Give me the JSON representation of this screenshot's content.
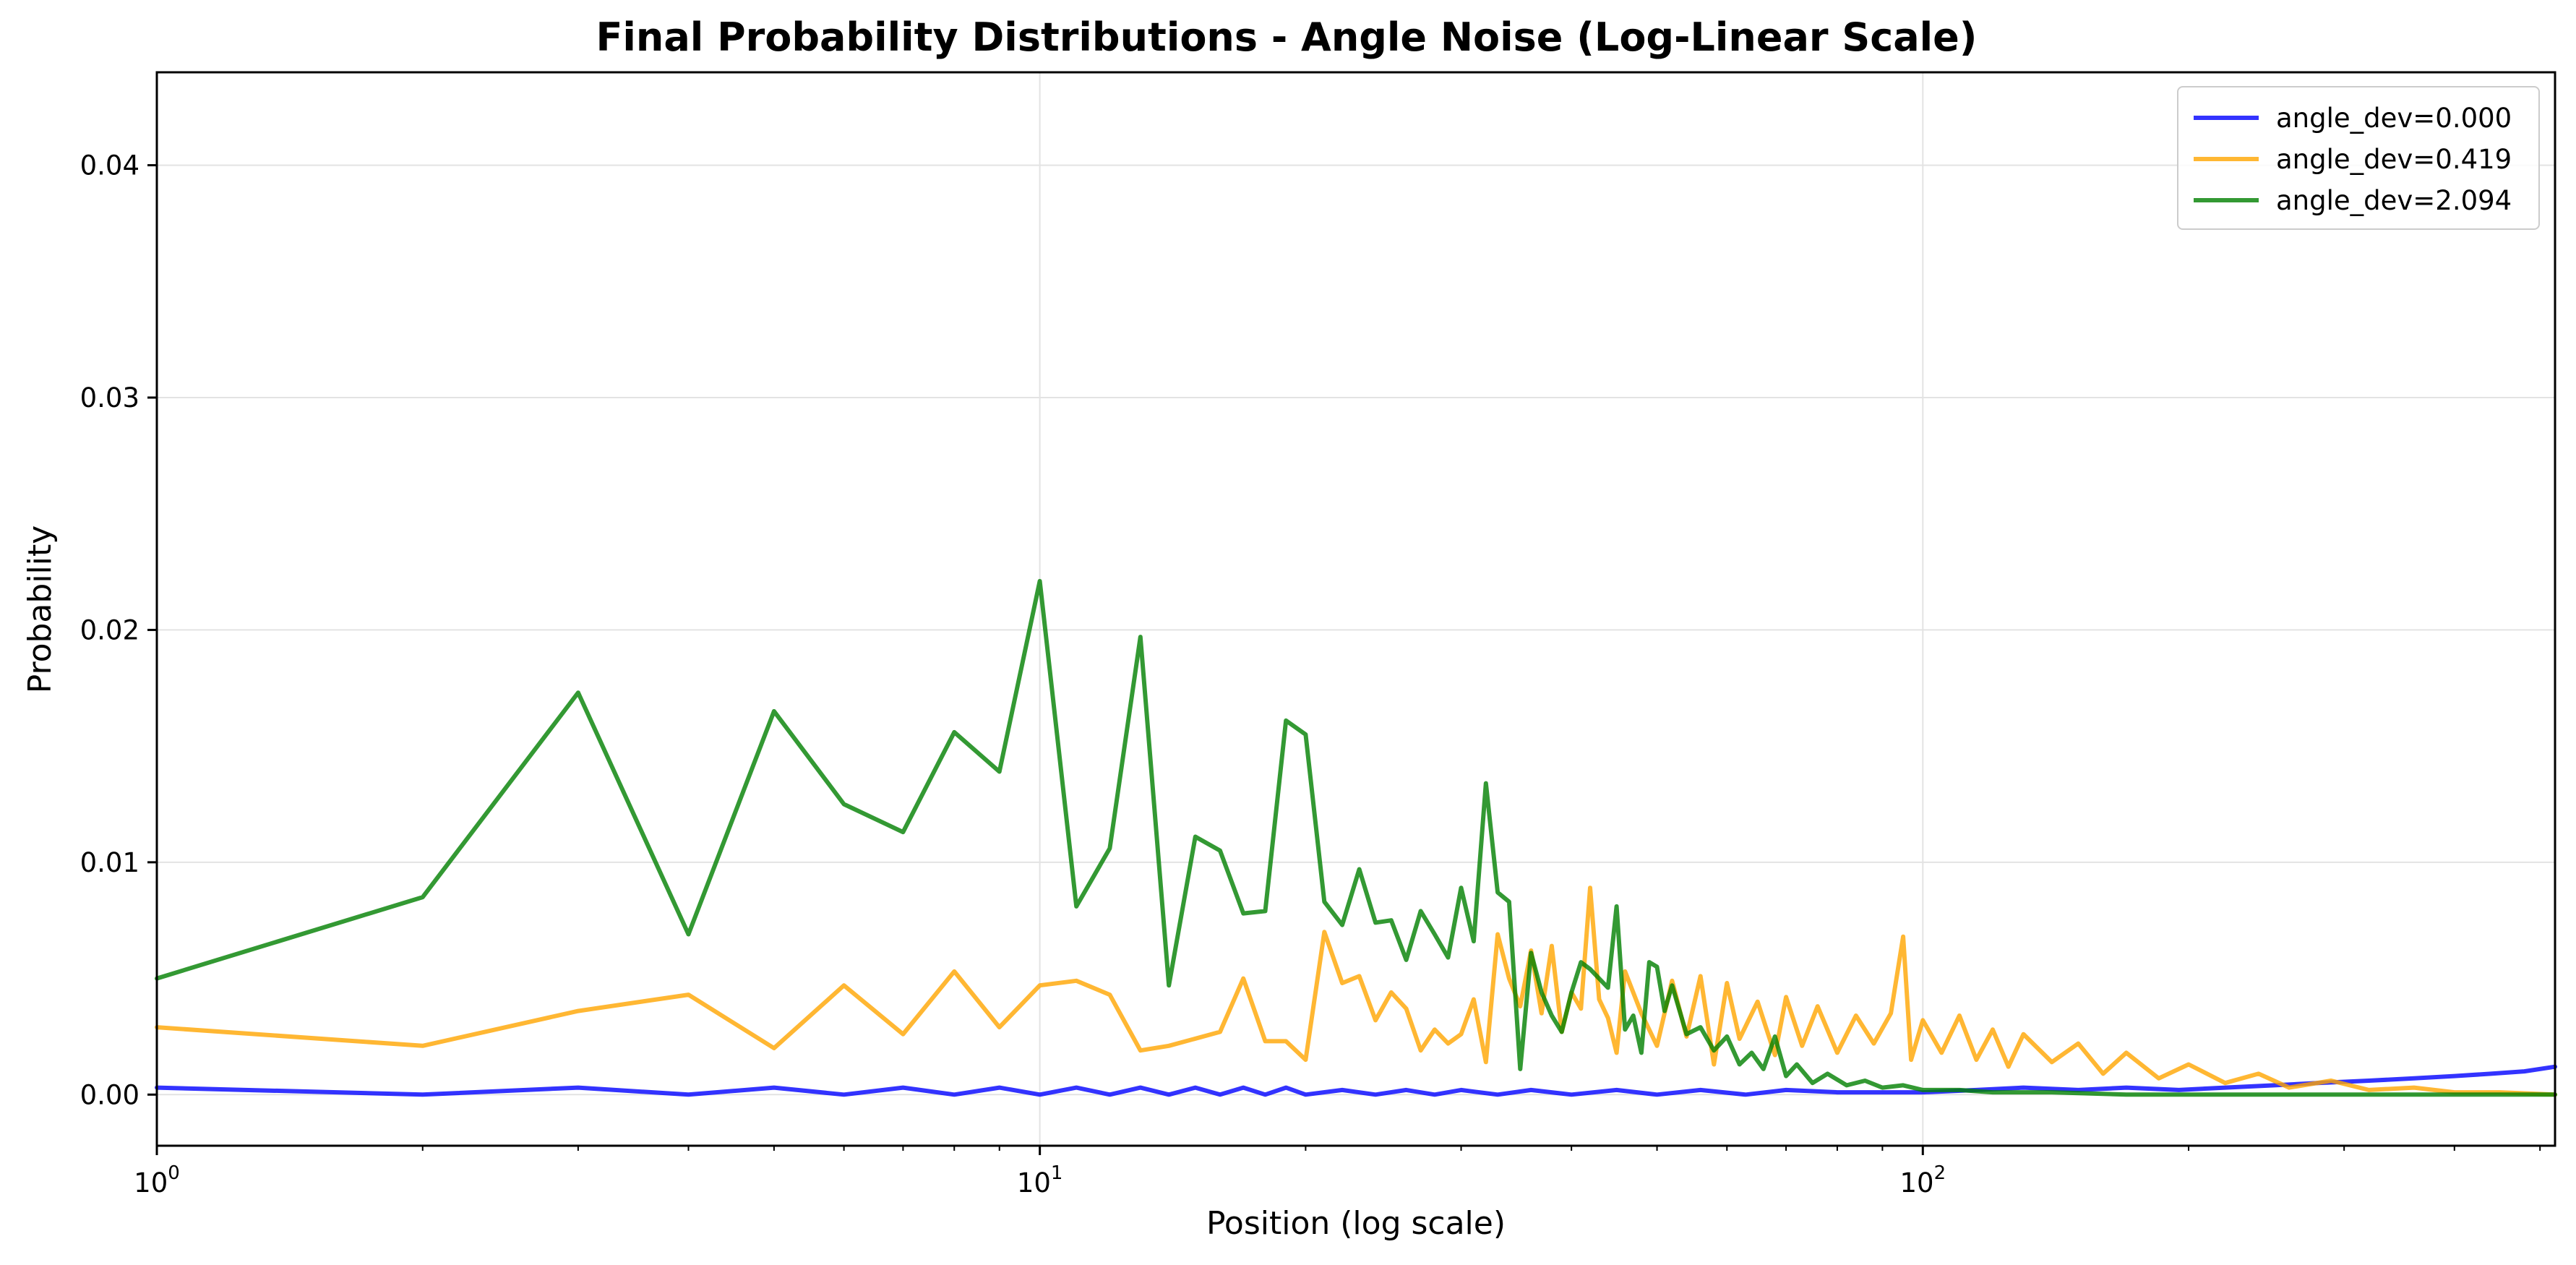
{
  "chart_data": {
    "type": "line",
    "title": "Final Probability Distributions - Angle Noise (Log-Linear Scale)",
    "xlabel": "Position (log scale)",
    "ylabel": "Probability",
    "xscale": "log",
    "xlim": [
      1,
      520
    ],
    "ylim": [
      -0.0022,
      0.044
    ],
    "grid": true,
    "legend_position": "top-right",
    "x_ticks": [
      {
        "value": 1,
        "base": "10",
        "exp": "0"
      },
      {
        "value": 10,
        "base": "10",
        "exp": "1"
      },
      {
        "value": 100,
        "base": "10",
        "exp": "2"
      }
    ],
    "y_ticks": [
      {
        "value": 0.0,
        "label": "0.00"
      },
      {
        "value": 0.01,
        "label": "0.01"
      },
      {
        "value": 0.02,
        "label": "0.02"
      },
      {
        "value": 0.03,
        "label": "0.03"
      },
      {
        "value": 0.04,
        "label": "0.04"
      }
    ],
    "series": [
      {
        "name": "angle_dev=0.000",
        "color": "#0000ff",
        "values": [
          [
            1,
            0.0003
          ],
          [
            2,
            0.0
          ],
          [
            3,
            0.0003
          ],
          [
            4,
            0.0
          ],
          [
            5,
            0.0003
          ],
          [
            6,
            0.0
          ],
          [
            7,
            0.0003
          ],
          [
            8,
            0.0
          ],
          [
            9,
            0.0003
          ],
          [
            10,
            0.0
          ],
          [
            11,
            0.0003
          ],
          [
            12,
            0.0
          ],
          [
            13,
            0.0003
          ],
          [
            14,
            0.0
          ],
          [
            15,
            0.0003
          ],
          [
            16,
            0.0
          ],
          [
            17,
            0.0003
          ],
          [
            18,
            0.0
          ],
          [
            19,
            0.0003
          ],
          [
            20,
            0.0
          ],
          [
            22,
            0.0002
          ],
          [
            24,
            0.0
          ],
          [
            26,
            0.0002
          ],
          [
            28,
            0.0
          ],
          [
            30,
            0.0002
          ],
          [
            33,
            0.0
          ],
          [
            36,
            0.0002
          ],
          [
            40,
            0.0
          ],
          [
            45,
            0.0002
          ],
          [
            50,
            0.0
          ],
          [
            56,
            0.0002
          ],
          [
            63,
            0.0
          ],
          [
            70,
            0.0002
          ],
          [
            80,
            0.0001
          ],
          [
            90,
            0.0001
          ],
          [
            100,
            0.0001
          ],
          [
            115,
            0.0002
          ],
          [
            130,
            0.0003
          ],
          [
            150,
            0.0002
          ],
          [
            170,
            0.0003
          ],
          [
            195,
            0.0002
          ],
          [
            220,
            0.0003
          ],
          [
            250,
            0.0004
          ],
          [
            280,
            0.0005
          ],
          [
            320,
            0.0006
          ],
          [
            360,
            0.0007
          ],
          [
            400,
            0.0008
          ],
          [
            440,
            0.0009
          ],
          [
            480,
            0.001
          ],
          [
            520,
            0.0012
          ]
        ]
      },
      {
        "name": "angle_dev=0.419",
        "color": "#ffa500",
        "values": [
          [
            1,
            0.0029
          ],
          [
            2,
            0.0021
          ],
          [
            3,
            0.0036
          ],
          [
            4,
            0.0043
          ],
          [
            5,
            0.002
          ],
          [
            6,
            0.0047
          ],
          [
            7,
            0.0026
          ],
          [
            8,
            0.0053
          ],
          [
            9,
            0.0029
          ],
          [
            10,
            0.0047
          ],
          [
            11,
            0.0049
          ],
          [
            12,
            0.0043
          ],
          [
            13,
            0.0019
          ],
          [
            14,
            0.0021
          ],
          [
            16,
            0.0027
          ],
          [
            17,
            0.005
          ],
          [
            18,
            0.0023
          ],
          [
            19,
            0.0023
          ],
          [
            20,
            0.0015
          ],
          [
            21,
            0.007
          ],
          [
            22,
            0.0048
          ],
          [
            23,
            0.0051
          ],
          [
            24,
            0.0032
          ],
          [
            25,
            0.0044
          ],
          [
            26,
            0.0037
          ],
          [
            27,
            0.0019
          ],
          [
            28,
            0.0028
          ],
          [
            29,
            0.0022
          ],
          [
            30,
            0.0026
          ],
          [
            31,
            0.0041
          ],
          [
            32,
            0.0014
          ],
          [
            33,
            0.0069
          ],
          [
            34,
            0.005
          ],
          [
            35,
            0.0038
          ],
          [
            36,
            0.0062
          ],
          [
            37,
            0.0035
          ],
          [
            38,
            0.0064
          ],
          [
            39,
            0.0027
          ],
          [
            40,
            0.0044
          ],
          [
            41,
            0.0037
          ],
          [
            42,
            0.0089
          ],
          [
            43,
            0.0041
          ],
          [
            44,
            0.0033
          ],
          [
            45,
            0.0018
          ],
          [
            46,
            0.0053
          ],
          [
            48,
            0.0035
          ],
          [
            50,
            0.0021
          ],
          [
            52,
            0.0049
          ],
          [
            54,
            0.0025
          ],
          [
            56,
            0.0051
          ],
          [
            58,
            0.0013
          ],
          [
            60,
            0.0048
          ],
          [
            62,
            0.0024
          ],
          [
            65,
            0.004
          ],
          [
            68,
            0.0017
          ],
          [
            70,
            0.0042
          ],
          [
            73,
            0.0021
          ],
          [
            76,
            0.0038
          ],
          [
            80,
            0.0018
          ],
          [
            84,
            0.0034
          ],
          [
            88,
            0.0022
          ],
          [
            92,
            0.0035
          ],
          [
            95,
            0.0068
          ],
          [
            97,
            0.0015
          ],
          [
            100,
            0.0032
          ],
          [
            105,
            0.0018
          ],
          [
            110,
            0.0034
          ],
          [
            115,
            0.0015
          ],
          [
            120,
            0.0028
          ],
          [
            125,
            0.0012
          ],
          [
            130,
            0.0026
          ],
          [
            140,
            0.0014
          ],
          [
            150,
            0.0022
          ],
          [
            160,
            0.0009
          ],
          [
            170,
            0.0018
          ],
          [
            185,
            0.0007
          ],
          [
            200,
            0.0013
          ],
          [
            220,
            0.0005
          ],
          [
            240,
            0.0009
          ],
          [
            260,
            0.0003
          ],
          [
            290,
            0.0006
          ],
          [
            320,
            0.0002
          ],
          [
            360,
            0.0003
          ],
          [
            400,
            0.0001
          ],
          [
            450,
            0.0001
          ],
          [
            520,
            0.0
          ]
        ]
      },
      {
        "name": "angle_dev=2.094",
        "color": "#008000",
        "values": [
          [
            1,
            0.005
          ],
          [
            2,
            0.0085
          ],
          [
            3,
            0.0173
          ],
          [
            4,
            0.0069
          ],
          [
            5,
            0.0165
          ],
          [
            6,
            0.0125
          ],
          [
            7,
            0.0113
          ],
          [
            8,
            0.0156
          ],
          [
            9,
            0.0139
          ],
          [
            10,
            0.0221
          ],
          [
            11,
            0.0081
          ],
          [
            12,
            0.0106
          ],
          [
            13,
            0.0197
          ],
          [
            14,
            0.0047
          ],
          [
            15,
            0.0111
          ],
          [
            16,
            0.0105
          ],
          [
            17,
            0.0078
          ],
          [
            18,
            0.0079
          ],
          [
            19,
            0.0161
          ],
          [
            20,
            0.0155
          ],
          [
            21,
            0.0083
          ],
          [
            22,
            0.0073
          ],
          [
            23,
            0.0097
          ],
          [
            24,
            0.0074
          ],
          [
            25,
            0.0075
          ],
          [
            26,
            0.0058
          ],
          [
            27,
            0.0079
          ],
          [
            28,
            0.0069
          ],
          [
            29,
            0.0059
          ],
          [
            30,
            0.0089
          ],
          [
            31,
            0.0066
          ],
          [
            32,
            0.0134
          ],
          [
            33,
            0.0087
          ],
          [
            34,
            0.0083
          ],
          [
            35,
            0.0011
          ],
          [
            36,
            0.0061
          ],
          [
            37,
            0.0044
          ],
          [
            38,
            0.0034
          ],
          [
            39,
            0.0027
          ],
          [
            40,
            0.0044
          ],
          [
            41,
            0.0057
          ],
          [
            42,
            0.0054
          ],
          [
            44,
            0.0046
          ],
          [
            45,
            0.0081
          ],
          [
            46,
            0.0028
          ],
          [
            47,
            0.0034
          ],
          [
            48,
            0.0018
          ],
          [
            49,
            0.0057
          ],
          [
            50,
            0.0055
          ],
          [
            51,
            0.0036
          ],
          [
            52,
            0.0047
          ],
          [
            54,
            0.0026
          ],
          [
            56,
            0.0029
          ],
          [
            58,
            0.0019
          ],
          [
            60,
            0.0025
          ],
          [
            62,
            0.0013
          ],
          [
            64,
            0.0018
          ],
          [
            66,
            0.0011
          ],
          [
            68,
            0.0025
          ],
          [
            70,
            0.0008
          ],
          [
            72,
            0.0013
          ],
          [
            75,
            0.0005
          ],
          [
            78,
            0.0009
          ],
          [
            82,
            0.0004
          ],
          [
            86,
            0.0006
          ],
          [
            90,
            0.0003
          ],
          [
            95,
            0.0004
          ],
          [
            100,
            0.0002
          ],
          [
            110,
            0.0002
          ],
          [
            120,
            0.0001
          ],
          [
            140,
            0.0001
          ],
          [
            170,
            0.0
          ],
          [
            220,
            0.0
          ],
          [
            300,
            0.0
          ],
          [
            400,
            0.0
          ],
          [
            520,
            0.0
          ]
        ]
      }
    ]
  }
}
